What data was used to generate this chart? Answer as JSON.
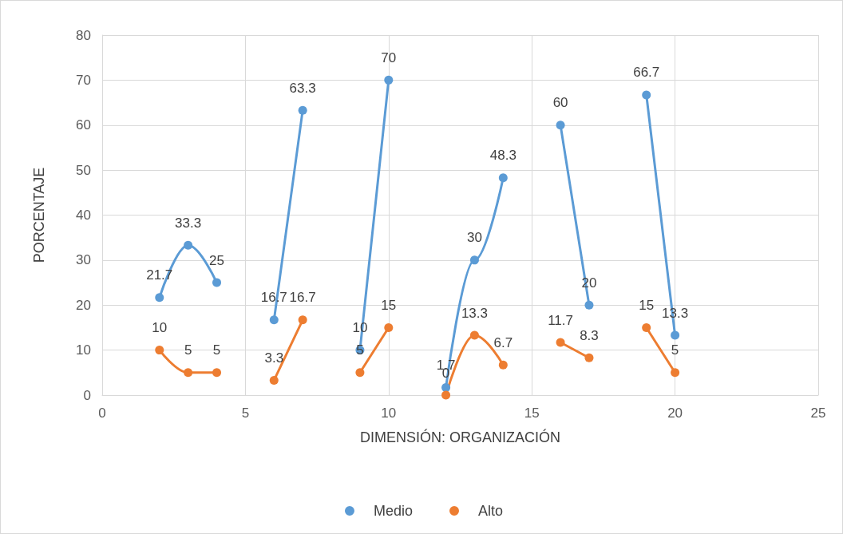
{
  "chart_data": {
    "type": "line",
    "xlabel": "DIMENSIÓN: ORGANIZACIÓN",
    "ylabel": "PORCENTAJE",
    "x": [
      2,
      3,
      4,
      5,
      6,
      7,
      8,
      9,
      10,
      11,
      12,
      13,
      14,
      15,
      16,
      17,
      18,
      19,
      20
    ],
    "series": [
      {
        "name": "Medio",
        "color": "#5b9bd5",
        "values": [
          21.7,
          33.3,
          25,
          null,
          16.7,
          63.3,
          null,
          10,
          70,
          null,
          1.7,
          30,
          48.3,
          null,
          60,
          20,
          null,
          66.7,
          13.3
        ]
      },
      {
        "name": "Alto",
        "color": "#ed7d31",
        "values": [
          10,
          5,
          5,
          null,
          3.3,
          16.7,
          null,
          5,
          15,
          null,
          0,
          13.3,
          6.7,
          null,
          11.7,
          8.3,
          null,
          15,
          5
        ]
      }
    ],
    "xlim": [
      0,
      25
    ],
    "xticks": [
      0,
      5,
      10,
      15,
      20,
      25
    ],
    "ylim": [
      0,
      80
    ],
    "yticks": [
      0,
      10,
      20,
      30,
      40,
      50,
      60,
      70,
      80
    ],
    "grid": true,
    "legend": "bottom",
    "marker": "circle",
    "line_style": "solid",
    "data_labels": true
  }
}
